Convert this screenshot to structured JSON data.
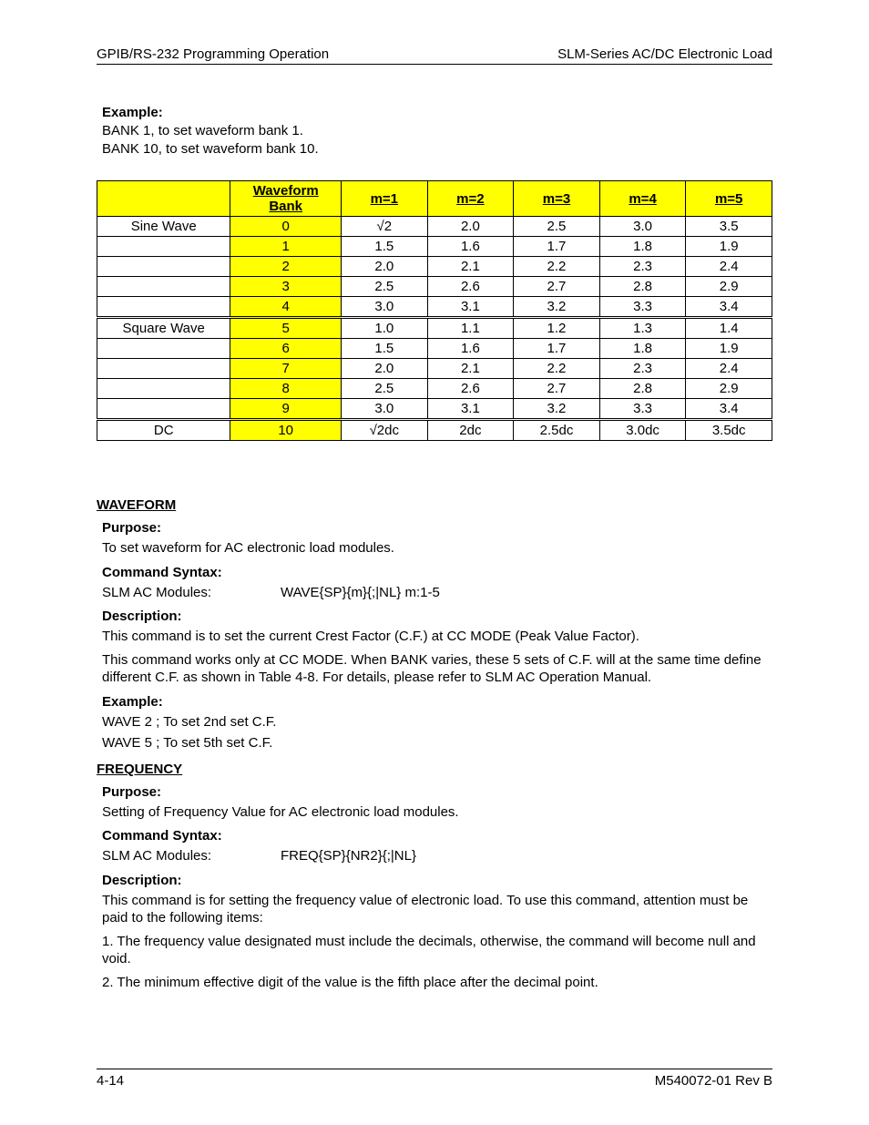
{
  "header": {
    "left": "GPIB/RS-232 Programming Operation",
    "right": "SLM-Series AC/DC Electronic Load"
  },
  "top_example": {
    "label": "Example:",
    "line1": "BANK 1, to set waveform bank 1.",
    "line2": "BANK 10, to set waveform bank 10."
  },
  "table": {
    "headers": {
      "name": "",
      "bank": "Waveform Bank",
      "m1": "m=1",
      "m2": "m=2",
      "m3": "m=3",
      "m4": "m=4",
      "m5": "m=5"
    },
    "header_bg": "#ffff00",
    "rows": [
      {
        "name": "Sine Wave",
        "bank": "0",
        "m1": "√2",
        "m2": "2.0",
        "m3": "2.5",
        "m4": "3.0",
        "m5": "3.5",
        "group": "sine"
      },
      {
        "name": "",
        "bank": "1",
        "m1": "1.5",
        "m2": "1.6",
        "m3": "1.7",
        "m4": "1.8",
        "m5": "1.9",
        "group": "sine"
      },
      {
        "name": "",
        "bank": "2",
        "m1": "2.0",
        "m2": "2.1",
        "m3": "2.2",
        "m4": "2.3",
        "m5": "2.4",
        "group": "sine"
      },
      {
        "name": "",
        "bank": "3",
        "m1": "2.5",
        "m2": "2.6",
        "m3": "2.7",
        "m4": "2.8",
        "m5": "2.9",
        "group": "sine"
      },
      {
        "name": "",
        "bank": "4",
        "m1": "3.0",
        "m2": "3.1",
        "m3": "3.2",
        "m4": "3.3",
        "m5": "3.4",
        "group": "sine"
      },
      {
        "name": "Square Wave",
        "bank": "5",
        "m1": "1.0",
        "m2": "1.1",
        "m3": "1.2",
        "m4": "1.3",
        "m5": "1.4",
        "group": "square"
      },
      {
        "name": "",
        "bank": "6",
        "m1": "1.5",
        "m2": "1.6",
        "m3": "1.7",
        "m4": "1.8",
        "m5": "1.9",
        "group": "square"
      },
      {
        "name": "",
        "bank": "7",
        "m1": "2.0",
        "m2": "2.1",
        "m3": "2.2",
        "m4": "2.3",
        "m5": "2.4",
        "group": "square"
      },
      {
        "name": "",
        "bank": "8",
        "m1": "2.5",
        "m2": "2.6",
        "m3": "2.7",
        "m4": "2.8",
        "m5": "2.9",
        "group": "square"
      },
      {
        "name": "",
        "bank": "9",
        "m1": "3.0",
        "m2": "3.1",
        "m3": "3.2",
        "m4": "3.3",
        "m5": "3.4",
        "group": "square"
      },
      {
        "name": "DC",
        "bank": "10",
        "m1": "√2dc",
        "m2": "2dc",
        "m3": "2.5dc",
        "m4": "3.0dc",
        "m5": "3.5dc",
        "group": "dc"
      }
    ]
  },
  "waveform": {
    "title": "WAVEFORM",
    "purpose_label": "Purpose:",
    "purpose": "To set waveform for AC electronic load modules.",
    "syntax_label": "Command Syntax:",
    "syntax_lhs": "SLM AC Modules:",
    "syntax_rhs": "WAVE{SP}{m}{;|NL} m:1-5",
    "desc_label": "Description:",
    "desc1": "This command is to set the current Crest Factor (C.F.) at CC MODE (Peak Value Factor).",
    "desc2": "This command works only at CC MODE. When BANK varies, these 5 sets of C.F. will at the same time define different C.F. as shown in Table 4-8. For details, please refer to SLM AC Operation Manual.",
    "example_label": "Example:",
    "example1": "WAVE 2 ; To set 2nd set C.F.",
    "example2": "WAVE 5 ; To set 5th set C.F."
  },
  "frequency": {
    "title": "FREQUENCY",
    "purpose_label": "Purpose:",
    "purpose": "Setting of Frequency Value for AC electronic load modules.",
    "syntax_label": "Command Syntax:",
    "syntax_lhs": "SLM AC Modules:",
    "syntax_rhs": "FREQ{SP}{NR2}{;|NL}",
    "desc_label": "Description:",
    "desc1": "This command is for setting the frequency value of electronic load. To use this command, attention must be paid to the following items:",
    "item1": " 1. The frequency value designated must include the decimals, otherwise, the command will become null and void.",
    "item2": " 2. The minimum effective digit of the value is the fifth place after the decimal point."
  },
  "footer": {
    "left": "4-14",
    "right": "M540072-01 Rev B"
  }
}
